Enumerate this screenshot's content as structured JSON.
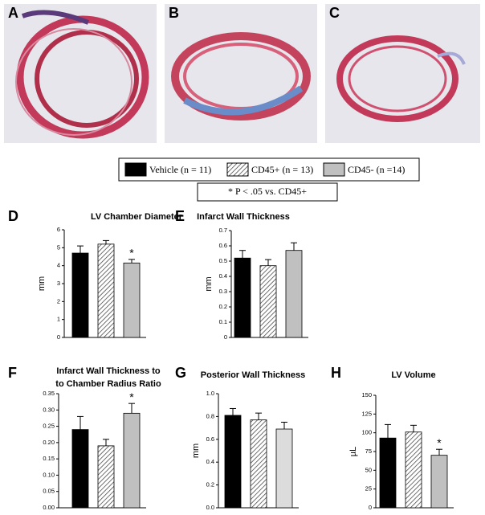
{
  "images": [
    {
      "label": "A"
    },
    {
      "label": "B"
    },
    {
      "label": "C"
    }
  ],
  "legend": {
    "entries": [
      {
        "name": "Vehicle (n = 11)",
        "fill": "#000000"
      },
      {
        "name": "CD45+ (n = 13)",
        "fill": "hatch"
      },
      {
        "name": "CD45- (n =14)",
        "fill": "#c0c0c0"
      }
    ],
    "note": "* P < .05 vs. CD45+"
  },
  "chart_data": [
    {
      "type": "bar",
      "panel": "D",
      "title": [
        "LV Chamber Diameter"
      ],
      "ylabel": "mm",
      "categories": [
        null,
        null,
        null
      ],
      "values": [
        4.7,
        5.2,
        4.15
      ],
      "errors": [
        0.4,
        0.2,
        0.2
      ],
      "fills": [
        "#000000",
        "hatch",
        "#c0c0c0"
      ],
      "markers": [
        null,
        null,
        "*"
      ],
      "ylim": [
        0,
        6
      ],
      "yticks": [
        0,
        1,
        2,
        3,
        4,
        5,
        6
      ]
    },
    {
      "type": "bar",
      "panel": "E",
      "title": [
        "Infarct Wall Thickness"
      ],
      "ylabel": "mm",
      "categories": [
        null,
        null,
        null
      ],
      "values": [
        0.52,
        0.47,
        0.57
      ],
      "errors": [
        0.05,
        0.04,
        0.05
      ],
      "fills": [
        "#000000",
        "hatch",
        "#c0c0c0"
      ],
      "markers": [
        null,
        null,
        null
      ],
      "ylim": [
        0,
        0.7
      ],
      "yticks": [
        0,
        0.1,
        0.2,
        0.3,
        0.4,
        0.5,
        0.6,
        0.7
      ]
    },
    {
      "type": "bar",
      "panel": "F",
      "title": [
        "Infarct Wall Thickness to",
        "to Chamber Radius Ratio"
      ],
      "ylabel": null,
      "categories": [
        null,
        null,
        null
      ],
      "values": [
        0.24,
        0.19,
        0.29
      ],
      "errors": [
        0.04,
        0.02,
        0.03
      ],
      "fills": [
        "#000000",
        "hatch",
        "#c0c0c0"
      ],
      "markers": [
        null,
        null,
        "*"
      ],
      "ylim": [
        0,
        0.35
      ],
      "yticks": [
        {
          "value": 0,
          "label": "0.00"
        },
        0.05,
        {
          "value": 0.1,
          "label": "0.10"
        },
        0.15,
        {
          "value": 0.2,
          "label": "0.20"
        },
        0.25,
        {
          "value": 0.3,
          "label": "0.30"
        },
        0.35
      ]
    },
    {
      "type": "bar",
      "panel": "G",
      "title": [
        "Posterior Wall Thickness"
      ],
      "ylabel": "mm",
      "categories": [
        null,
        null,
        null
      ],
      "values": [
        0.81,
        0.77,
        0.69
      ],
      "errors": [
        0.06,
        0.06,
        0.06
      ],
      "fills": [
        "#000000",
        "hatch",
        "#dcdcdc"
      ],
      "markers": [
        null,
        null,
        null
      ],
      "ylim": [
        0,
        1.0
      ],
      "yticks": [
        {
          "value": 0,
          "label": "0.0"
        },
        0.2,
        0.4,
        0.6,
        0.8,
        {
          "value": 1,
          "label": "1.0"
        }
      ]
    },
    {
      "type": "bar",
      "panel": "H",
      "title": [
        "LV Volume"
      ],
      "ylabel": "µL",
      "categories": [
        null,
        null,
        null
      ],
      "values": [
        93,
        101,
        70
      ],
      "errors": [
        18,
        9,
        8
      ],
      "fills": [
        "#000000",
        "hatch",
        "#c0c0c0"
      ],
      "markers": [
        null,
        null,
        "*"
      ],
      "ylim": [
        0,
        150
      ],
      "yticks": [
        0,
        25,
        50,
        75,
        100,
        125,
        150
      ]
    }
  ]
}
